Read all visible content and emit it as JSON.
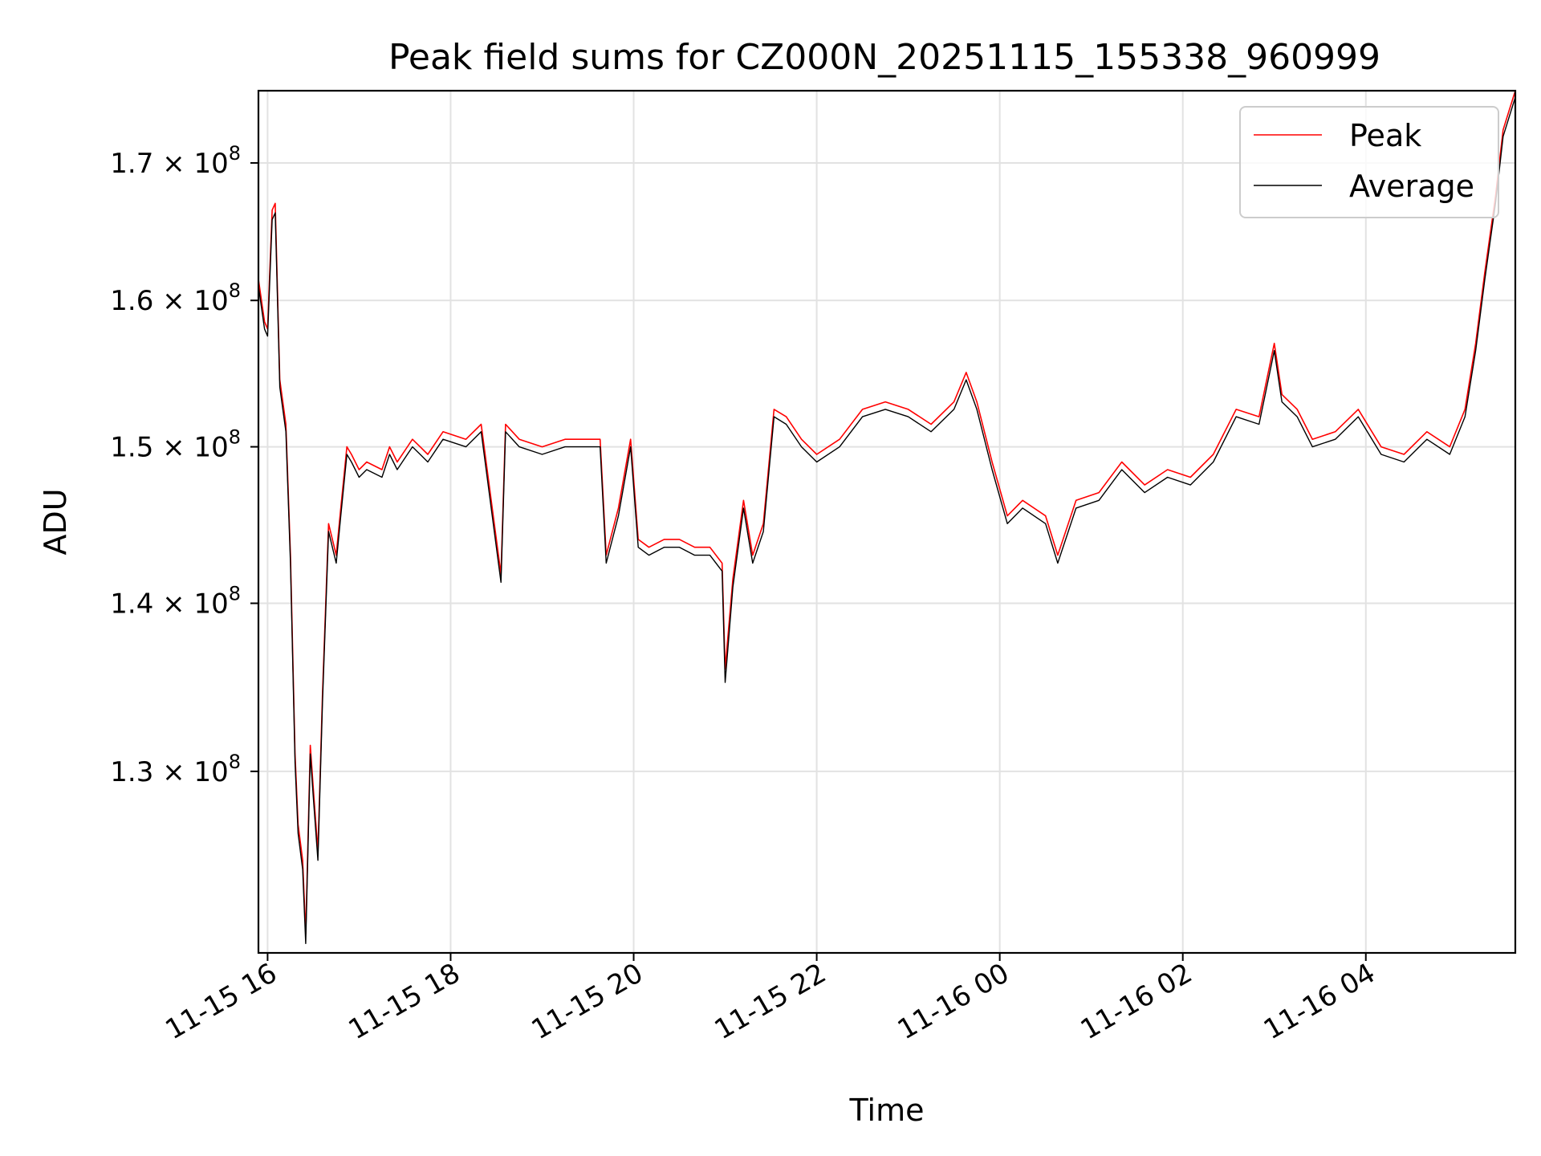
{
  "chart_data": {
    "type": "line",
    "title": "Peak field sums for CZ000N_20251115_155338_960999",
    "xlabel": "Time",
    "ylabel": "ADU",
    "yscale": "log",
    "grid": true,
    "legend_placement": "upper-right",
    "xlim": [
      "2025-11-15 15:54",
      "2025-11-16 05:38"
    ],
    "ylim": [
      120000000,
      175500000
    ],
    "x_ticks": [
      {
        "value": "2025-11-15 16:00",
        "label": "11-15 16"
      },
      {
        "value": "2025-11-15 18:00",
        "label": "11-15 18"
      },
      {
        "value": "2025-11-15 20:00",
        "label": "11-15 20"
      },
      {
        "value": "2025-11-15 22:00",
        "label": "11-15 22"
      },
      {
        "value": "2025-11-16 00:00",
        "label": "11-16 00"
      },
      {
        "value": "2025-11-16 02:00",
        "label": "11-16 02"
      },
      {
        "value": "2025-11-16 04:00",
        "label": "11-16 04"
      }
    ],
    "y_ticks": [
      {
        "value": 130000000,
        "mantissa": "1.3"
      },
      {
        "value": 140000000,
        "mantissa": "1.4"
      },
      {
        "value": 150000000,
        "mantissa": "1.5"
      },
      {
        "value": 160000000,
        "mantissa": "1.6"
      },
      {
        "value": 170000000,
        "mantissa": "1.7"
      }
    ],
    "y_tick_suffix": "× 10",
    "y_tick_exponent": "8",
    "series": [
      {
        "name": "Peak",
        "color": "#ff0000",
        "x": [
          "2025-11-15 15:54",
          "2025-11-15 15:58",
          "2025-11-15 16:00",
          "2025-11-15 16:03",
          "2025-11-15 16:05",
          "2025-11-15 16:08",
          "2025-11-15 16:12",
          "2025-11-15 16:15",
          "2025-11-15 16:18",
          "2025-11-15 16:20",
          "2025-11-15 16:23",
          "2025-11-15 16:25",
          "2025-11-15 16:28",
          "2025-11-15 16:30",
          "2025-11-15 16:33",
          "2025-11-15 16:36",
          "2025-11-15 16:40",
          "2025-11-15 16:45",
          "2025-11-15 16:48",
          "2025-11-15 16:52",
          "2025-11-15 16:55",
          "2025-11-15 17:00",
          "2025-11-15 17:05",
          "2025-11-15 17:15",
          "2025-11-15 17:20",
          "2025-11-15 17:25",
          "2025-11-15 17:35",
          "2025-11-15 17:40",
          "2025-11-15 17:45",
          "2025-11-15 17:55",
          "2025-11-15 18:10",
          "2025-11-15 18:20",
          "2025-11-15 18:33",
          "2025-11-15 18:36",
          "2025-11-15 18:45",
          "2025-11-15 19:00",
          "2025-11-15 19:15",
          "2025-11-15 19:30",
          "2025-11-15 19:38",
          "2025-11-15 19:42",
          "2025-11-15 19:50",
          "2025-11-15 19:58",
          "2025-11-15 20:03",
          "2025-11-15 20:10",
          "2025-11-15 20:20",
          "2025-11-15 20:30",
          "2025-11-15 20:40",
          "2025-11-15 20:50",
          "2025-11-15 20:58",
          "2025-11-15 21:00",
          "2025-11-15 21:05",
          "2025-11-15 21:12",
          "2025-11-15 21:18",
          "2025-11-15 21:25",
          "2025-11-15 21:32",
          "2025-11-15 21:40",
          "2025-11-15 21:50",
          "2025-11-15 22:00",
          "2025-11-15 22:15",
          "2025-11-15 22:30",
          "2025-11-15 22:45",
          "2025-11-15 23:00",
          "2025-11-15 23:15",
          "2025-11-15 23:30",
          "2025-11-15 23:38",
          "2025-11-15 23:45",
          "2025-11-15 23:55",
          "2025-11-16 00:05",
          "2025-11-16 00:15",
          "2025-11-16 00:30",
          "2025-11-16 00:38",
          "2025-11-16 00:50",
          "2025-11-16 01:05",
          "2025-11-16 01:20",
          "2025-11-16 01:35",
          "2025-11-16 01:50",
          "2025-11-16 02:05",
          "2025-11-16 02:20",
          "2025-11-16 02:35",
          "2025-11-16 02:50",
          "2025-11-16 03:00",
          "2025-11-16 03:05",
          "2025-11-16 03:15",
          "2025-11-16 03:25",
          "2025-11-16 03:40",
          "2025-11-16 03:55",
          "2025-11-16 04:10",
          "2025-11-16 04:25",
          "2025-11-16 04:40",
          "2025-11-16 04:55",
          "2025-11-16 05:05",
          "2025-11-16 05:12",
          "2025-11-16 05:18",
          "2025-11-16 05:25",
          "2025-11-16 05:30",
          "2025-11-16 05:34",
          "2025-11-16 05:38"
        ],
        "values": [
          161500000,
          158500000,
          158000000,
          166500000,
          167000000,
          154500000,
          151500000,
          143000000,
          131000000,
          127000000,
          125000000,
          121000000,
          131500000,
          129000000,
          125500000,
          134500000,
          145000000,
          143000000,
          146000000,
          150000000,
          149500000,
          148500000,
          149000000,
          148500000,
          150000000,
          149000000,
          150500000,
          150000000,
          149500000,
          151000000,
          150500000,
          151500000,
          141800000,
          151500000,
          150500000,
          150000000,
          150500000,
          150500000,
          150500000,
          143000000,
          146000000,
          150500000,
          144000000,
          143500000,
          144000000,
          144000000,
          143500000,
          143500000,
          142500000,
          136000000,
          141500000,
          146500000,
          143000000,
          145000000,
          152500000,
          152000000,
          150500000,
          149500000,
          150500000,
          152500000,
          153000000,
          152500000,
          151500000,
          153000000,
          155000000,
          153000000,
          149000000,
          145500000,
          146500000,
          145500000,
          143000000,
          146500000,
          147000000,
          149000000,
          147500000,
          148500000,
          148000000,
          149500000,
          152500000,
          152000000,
          157000000,
          153500000,
          152500000,
          150500000,
          151000000,
          152500000,
          150000000,
          149500000,
          151000000,
          150000000,
          152500000,
          157000000,
          162000000,
          167500000,
          172500000,
          174000000,
          175500000
        ]
      },
      {
        "name": "Average",
        "color": "#000000",
        "x": [
          "2025-11-15 15:54",
          "2025-11-15 15:58",
          "2025-11-15 16:00",
          "2025-11-15 16:03",
          "2025-11-15 16:05",
          "2025-11-15 16:08",
          "2025-11-15 16:12",
          "2025-11-15 16:15",
          "2025-11-15 16:18",
          "2025-11-15 16:20",
          "2025-11-15 16:23",
          "2025-11-15 16:25",
          "2025-11-15 16:28",
          "2025-11-15 16:30",
          "2025-11-15 16:33",
          "2025-11-15 16:36",
          "2025-11-15 16:40",
          "2025-11-15 16:45",
          "2025-11-15 16:48",
          "2025-11-15 16:52",
          "2025-11-15 16:55",
          "2025-11-15 17:00",
          "2025-11-15 17:05",
          "2025-11-15 17:15",
          "2025-11-15 17:20",
          "2025-11-15 17:25",
          "2025-11-15 17:35",
          "2025-11-15 17:40",
          "2025-11-15 17:45",
          "2025-11-15 17:55",
          "2025-11-15 18:10",
          "2025-11-15 18:20",
          "2025-11-15 18:33",
          "2025-11-15 18:36",
          "2025-11-15 18:45",
          "2025-11-15 19:00",
          "2025-11-15 19:15",
          "2025-11-15 19:30",
          "2025-11-15 19:38",
          "2025-11-15 19:42",
          "2025-11-15 19:50",
          "2025-11-15 19:58",
          "2025-11-15 20:03",
          "2025-11-15 20:10",
          "2025-11-15 20:20",
          "2025-11-15 20:30",
          "2025-11-15 20:40",
          "2025-11-15 20:50",
          "2025-11-15 20:58",
          "2025-11-15 21:00",
          "2025-11-15 21:05",
          "2025-11-15 21:12",
          "2025-11-15 21:18",
          "2025-11-15 21:25",
          "2025-11-15 21:32",
          "2025-11-15 21:40",
          "2025-11-15 21:50",
          "2025-11-15 22:00",
          "2025-11-15 22:15",
          "2025-11-15 22:30",
          "2025-11-15 22:45",
          "2025-11-15 23:00",
          "2025-11-15 23:15",
          "2025-11-15 23:30",
          "2025-11-15 23:38",
          "2025-11-15 23:45",
          "2025-11-15 23:55",
          "2025-11-16 00:05",
          "2025-11-16 00:15",
          "2025-11-16 00:30",
          "2025-11-16 00:38",
          "2025-11-16 00:50",
          "2025-11-16 01:05",
          "2025-11-16 01:20",
          "2025-11-16 01:35",
          "2025-11-16 01:50",
          "2025-11-16 02:05",
          "2025-11-16 02:20",
          "2025-11-16 02:35",
          "2025-11-16 02:50",
          "2025-11-16 03:00",
          "2025-11-16 03:05",
          "2025-11-16 03:15",
          "2025-11-16 03:25",
          "2025-11-16 03:40",
          "2025-11-16 03:55",
          "2025-11-16 04:10",
          "2025-11-16 04:25",
          "2025-11-16 04:40",
          "2025-11-16 04:55",
          "2025-11-16 05:05",
          "2025-11-16 05:12",
          "2025-11-16 05:18",
          "2025-11-16 05:25",
          "2025-11-16 05:30",
          "2025-11-16 05:34",
          "2025-11-16 05:38"
        ],
        "values": [
          161000000,
          158000000,
          157500000,
          165800000,
          166300000,
          154000000,
          151000000,
          142500000,
          130500000,
          126500000,
          124500000,
          120500000,
          131000000,
          128500000,
          125000000,
          134000000,
          144500000,
          142500000,
          145500000,
          149500000,
          149000000,
          148000000,
          148500000,
          148000000,
          149500000,
          148500000,
          150000000,
          149500000,
          149000000,
          150500000,
          150000000,
          151000000,
          141300000,
          151000000,
          150000000,
          149500000,
          150000000,
          150000000,
          150000000,
          142500000,
          145500000,
          150000000,
          143500000,
          143000000,
          143500000,
          143500000,
          143000000,
          143000000,
          142000000,
          135200000,
          141000000,
          146000000,
          142500000,
          144500000,
          152000000,
          151500000,
          150000000,
          149000000,
          150000000,
          152000000,
          152500000,
          152000000,
          151000000,
          152500000,
          154500000,
          152500000,
          148500000,
          145000000,
          146000000,
          145000000,
          142500000,
          146000000,
          146500000,
          148500000,
          147000000,
          148000000,
          147500000,
          149000000,
          152000000,
          151500000,
          156500000,
          153000000,
          152000000,
          150000000,
          150500000,
          152000000,
          149500000,
          149000000,
          150500000,
          149500000,
          152000000,
          156500000,
          161500000,
          167000000,
          172000000,
          173500000,
          175000000
        ]
      }
    ]
  }
}
